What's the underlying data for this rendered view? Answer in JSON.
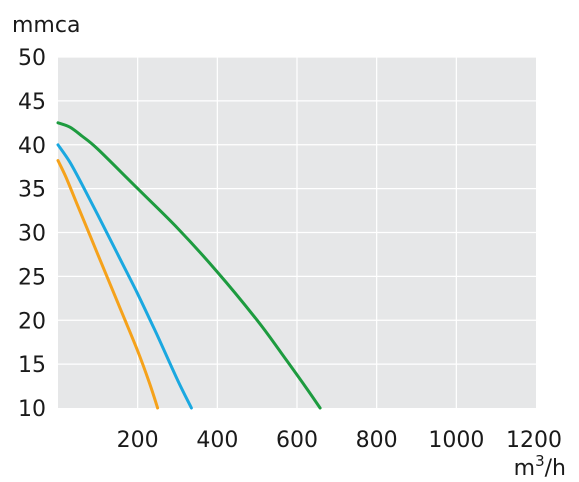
{
  "chart_data": {
    "type": "line",
    "title": "",
    "ylabel": "mmca",
    "xlabel_base": "m",
    "xlabel_sup": "3",
    "xlabel_tail": "/h",
    "xlim": [
      0,
      1200
    ],
    "ylim": [
      10,
      50
    ],
    "x_ticks": [
      200,
      400,
      600,
      800,
      1000,
      1200
    ],
    "y_ticks": [
      10,
      15,
      20,
      25,
      30,
      35,
      40,
      45,
      50
    ],
    "grid": true,
    "plot_background": "#e6e7e8",
    "grid_color": "#ffffff",
    "series": [
      {
        "color": "#f5a21b",
        "x": [
          0,
          20,
          50,
          100,
          150,
          200,
          230,
          250
        ],
        "y": [
          38.2,
          36.3,
          33.0,
          27.5,
          22.0,
          16.5,
          12.8,
          10.0
        ]
      },
      {
        "color": "#1aa8e0",
        "x": [
          0,
          30,
          60,
          100,
          150,
          200,
          250,
          300,
          335
        ],
        "y": [
          40.0,
          38.0,
          35.5,
          32.0,
          27.5,
          23.0,
          18.2,
          13.2,
          10.0
        ]
      },
      {
        "color": "#1d9b3f",
        "x": [
          0,
          30,
          60,
          100,
          200,
          300,
          400,
          500,
          560,
          620,
          658
        ],
        "y": [
          42.5,
          42.0,
          41.0,
          39.5,
          35.0,
          30.5,
          25.5,
          20.0,
          16.3,
          12.5,
          10.0
        ]
      }
    ]
  }
}
